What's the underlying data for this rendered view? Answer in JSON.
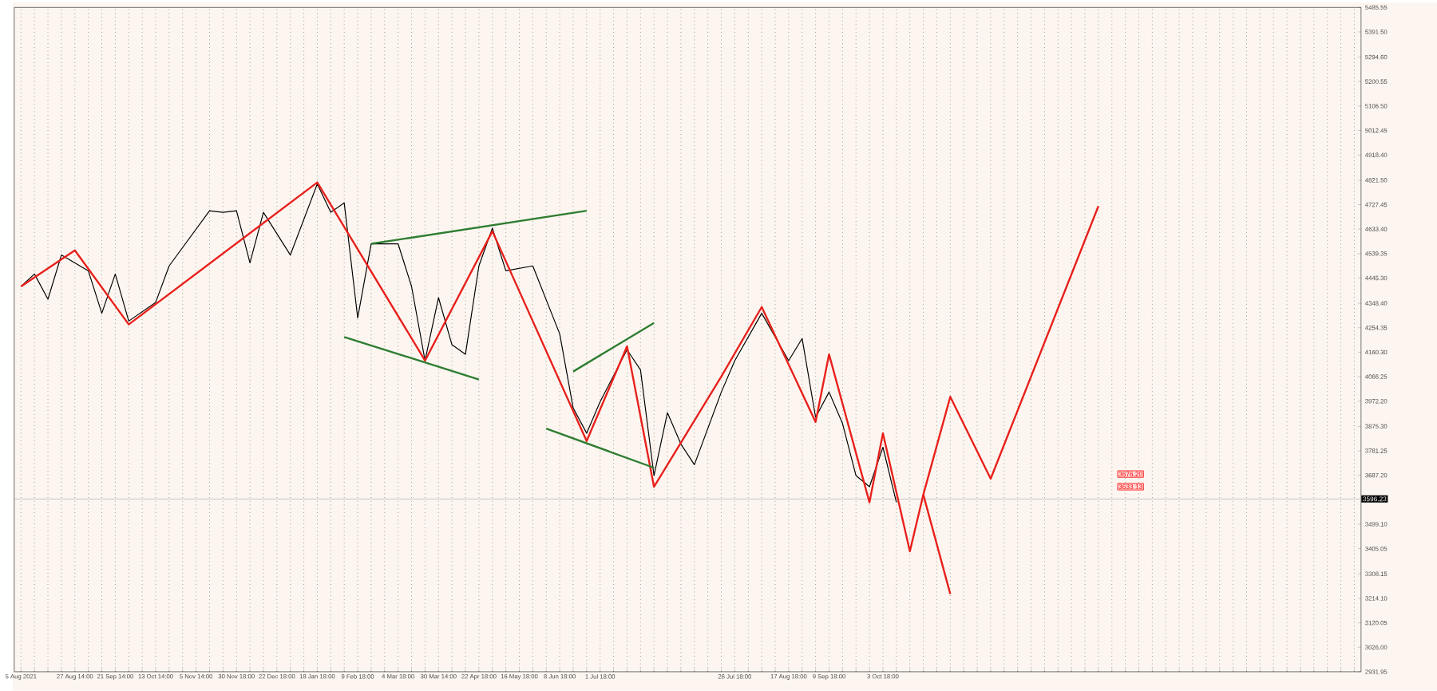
{
  "chart_data": {
    "type": "line",
    "categories": [
      "5 Aug 2021",
      null,
      null,
      null,
      "27 Aug 14:00",
      null,
      null,
      "21 Sep 14:00",
      null,
      null,
      "13 Oct 14:00",
      null,
      null,
      "5 Nov 14:00",
      null,
      null,
      "30 Nov 18:00",
      null,
      null,
      "22 Dec 18:00",
      null,
      null,
      "18 Jan 18:00",
      null,
      null,
      "9 Feb 18:00",
      null,
      null,
      "4 Mar 18:00",
      null,
      null,
      "30 Mar 14:00",
      null,
      null,
      "22 Apr 18:00",
      null,
      null,
      "16 May 18:00",
      null,
      null,
      "8 Jun 18:00",
      null,
      null,
      "1 Jul 18:00",
      null,
      null,
      null,
      null,
      null,
      null,
      null,
      null,
      null,
      "26 Jul 18:00",
      null,
      null,
      null,
      "17 Aug 18:00",
      null,
      null,
      "9 Sep 18:00",
      null,
      null,
      null,
      "3 Oct 18:00",
      null,
      null,
      null,
      null,
      null,
      null,
      null,
      null,
      null,
      null,
      null,
      null,
      null,
      null,
      null,
      null,
      null,
      null,
      null,
      null,
      null,
      null,
      null,
      null,
      null,
      null,
      null,
      null,
      null,
      null,
      null,
      null,
      null,
      null,
      null
    ],
    "ylim": [
      2931.95,
      5485.55
    ],
    "yticks": [
      {
        "value": 2931.95,
        "label": "2931.95"
      },
      {
        "value": 3026.0,
        "label": "3026.00"
      },
      {
        "value": 3120.05,
        "label": "3120.05"
      },
      {
        "value": 3214.1,
        "label": "3214.10"
      },
      {
        "value": 3308.15,
        "label": "3308.15"
      },
      {
        "value": 3405.05,
        "label": "3405.05"
      },
      {
        "value": 3499.1,
        "label": "3499.10"
      },
      {
        "value": 3687.2,
        "label": "3687.20"
      },
      {
        "value": 3781.25,
        "label": "3781.25"
      },
      {
        "value": 3875.3,
        "label": "3875.30"
      },
      {
        "value": 3972.2,
        "label": "3972.20"
      },
      {
        "value": 4066.25,
        "label": "4066.25"
      },
      {
        "value": 4160.3,
        "label": "4160.30"
      },
      {
        "value": 4254.35,
        "label": "4254.35"
      },
      {
        "value": 4348.4,
        "label": "4348.40"
      },
      {
        "value": 4445.3,
        "label": "4445.30"
      },
      {
        "value": 4539.35,
        "label": "4539.35"
      },
      {
        "value": 4633.4,
        "label": "4633.40"
      },
      {
        "value": 4727.45,
        "label": "4727.45"
      },
      {
        "value": 4821.5,
        "label": "4821.50"
      },
      {
        "value": 4918.4,
        "label": "4918.40"
      },
      {
        "value": 5012.45,
        "label": "5012.45"
      },
      {
        "value": 5106.5,
        "label": "5106.50"
      },
      {
        "value": 5200.55,
        "label": "5200.55"
      },
      {
        "value": 5294.6,
        "label": "5294.60"
      },
      {
        "value": 5391.5,
        "label": "5391.50"
      },
      {
        "value": 5485.55,
        "label": "5485.55"
      }
    ],
    "grid": "x",
    "series": [
      {
        "color": "#000000",
        "values": [
          4413,
          4461,
          4364,
          4534,
          null,
          4473,
          4310,
          4461,
          4280,
          null,
          4352,
          4492,
          null,
          null,
          4704,
          4698,
          4704,
          4504,
          4698,
          null,
          4534,
          null,
          4807,
          4698,
          4734,
          4292,
          4577,
          null,
          4577,
          4413,
          4128,
          4370,
          4189,
          4152,
          4492,
          4637,
          4473,
          null,
          4492,
          null,
          4231,
          3946,
          3849,
          3970,
          null,
          4170,
          4092,
          3686,
          3928,
          3807,
          3728,
          null,
          4007,
          4128,
          null,
          4310,
          null,
          4128,
          4213,
          3910,
          4007,
          3886,
          3686,
          3643,
          3795,
          3583,
          null,
          null,
          null,
          null,
          null,
          null,
          null,
          null,
          null,
          null,
          null,
          null,
          null,
          null,
          null,
          null,
          null,
          null,
          null,
          null,
          null,
          null,
          null,
          null,
          null,
          null,
          null,
          null,
          null,
          null,
          null,
          null,
          null,
          null
        ]
      },
      {
        "color": "#e8201c",
        "values": [
          4413,
          null,
          null,
          null,
          4552,
          null,
          null,
          null,
          4267,
          null,
          null,
          null,
          null,
          null,
          null,
          null,
          null,
          null,
          null,
          null,
          null,
          null,
          4813,
          null,
          null,
          null,
          null,
          null,
          null,
          null,
          4128,
          null,
          null,
          null,
          null,
          4625,
          null,
          null,
          null,
          null,
          null,
          null,
          3819,
          null,
          null,
          4183,
          null,
          3643,
          null,
          null,
          null,
          null,
          4067,
          null,
          null,
          4334,
          null,
          null,
          null,
          3892,
          4152,
          null,
          null,
          3583,
          3849,
          null,
          3395,
          3613,
          null,
          3989,
          null,
          null,
          3674,
          null,
          null,
          null,
          null,
          null,
          null,
          null,
          4722,
          null,
          null,
          null,
          null,
          null,
          null,
          null,
          null,
          null,
          null,
          null,
          null,
          null,
          null,
          null,
          null,
          null,
          null,
          null
        ]
      },
      {
        "color": "#e8201c",
        "values": [
          null,
          null,
          null,
          null,
          null,
          null,
          null,
          null,
          null,
          null,
          null,
          null,
          null,
          null,
          null,
          null,
          null,
          null,
          null,
          null,
          null,
          null,
          null,
          null,
          null,
          null,
          null,
          null,
          null,
          null,
          null,
          null,
          null,
          null,
          null,
          null,
          null,
          null,
          null,
          null,
          null,
          null,
          null,
          null,
          null,
          null,
          null,
          null,
          null,
          null,
          null,
          null,
          null,
          null,
          null,
          null,
          null,
          null,
          null,
          null,
          null,
          null,
          null,
          null,
          null,
          null,
          null,
          3613,
          null,
          3231,
          null,
          null,
          null,
          null,
          null,
          null,
          null,
          null,
          null,
          null,
          null,
          null,
          null,
          null,
          null,
          null,
          null,
          null,
          null,
          null,
          null,
          null,
          null,
          null,
          null,
          null,
          null,
          null,
          null,
          null
        ]
      },
      {
        "color": "#2e7d32",
        "values": [
          null,
          null,
          null,
          null,
          null,
          null,
          null,
          null,
          null,
          null,
          null,
          null,
          null,
          null,
          null,
          null,
          null,
          null,
          null,
          null,
          null,
          null,
          null,
          null,
          null,
          null,
          4577,
          null,
          null,
          null,
          null,
          null,
          null,
          null,
          null,
          null,
          null,
          null,
          null,
          null,
          null,
          null,
          4704,
          null,
          null,
          null,
          null,
          null,
          null,
          null,
          null,
          null,
          null,
          null,
          null,
          null,
          null,
          null,
          null,
          null,
          null,
          null,
          null,
          null,
          null,
          null,
          null,
          null,
          null,
          null,
          null,
          null,
          null,
          null,
          null,
          null,
          null,
          null,
          null,
          null,
          null,
          null,
          null,
          null,
          null,
          null,
          null,
          null,
          null,
          null,
          null,
          null,
          null,
          null,
          null,
          null,
          null,
          null,
          null,
          null
        ]
      },
      {
        "color": "#2e7d32",
        "values": [
          null,
          null,
          null,
          null,
          null,
          null,
          null,
          null,
          null,
          null,
          null,
          null,
          null,
          null,
          null,
          null,
          null,
          null,
          null,
          null,
          null,
          null,
          null,
          null,
          4219,
          null,
          null,
          null,
          null,
          null,
          null,
          null,
          null,
          null,
          4055,
          null,
          null,
          null,
          null,
          null,
          null,
          null,
          null,
          null,
          null,
          null,
          null,
          null,
          null,
          null,
          null,
          null,
          null,
          null,
          null,
          null,
          null,
          null,
          null,
          null,
          null,
          null,
          null,
          null,
          null,
          null,
          null,
          null,
          null,
          null,
          null,
          null,
          null,
          null,
          null,
          null,
          null,
          null,
          null,
          null,
          null,
          null,
          null,
          null,
          null,
          null,
          null,
          null,
          null,
          null,
          null,
          null,
          null,
          null,
          null,
          null,
          null,
          null,
          null,
          null
        ]
      },
      {
        "color": "#2e7d32",
        "values": [
          null,
          null,
          null,
          null,
          null,
          null,
          null,
          null,
          null,
          null,
          null,
          null,
          null,
          null,
          null,
          null,
          null,
          null,
          null,
          null,
          null,
          null,
          null,
          null,
          null,
          null,
          null,
          null,
          null,
          null,
          null,
          null,
          null,
          null,
          null,
          null,
          null,
          null,
          null,
          null,
          null,
          4086,
          null,
          null,
          null,
          null,
          null,
          4273,
          null,
          null,
          null,
          null,
          null,
          null,
          null,
          null,
          null,
          null,
          null,
          null,
          null,
          null,
          null,
          null,
          null,
          null,
          null,
          null,
          null,
          null,
          null,
          null,
          null,
          null,
          null,
          null,
          null,
          null,
          null,
          null,
          null,
          null,
          null,
          null,
          null,
          null,
          null,
          null,
          null,
          null,
          null,
          null,
          null,
          null,
          null,
          null,
          null,
          null,
          null,
          null
        ]
      },
      {
        "color": "#2e7d32",
        "values": [
          null,
          null,
          null,
          null,
          null,
          null,
          null,
          null,
          null,
          null,
          null,
          null,
          null,
          null,
          null,
          null,
          null,
          null,
          null,
          null,
          null,
          null,
          null,
          null,
          null,
          null,
          null,
          null,
          null,
          null,
          null,
          null,
          null,
          null,
          null,
          null,
          null,
          null,
          null,
          3867,
          null,
          null,
          null,
          null,
          null,
          null,
          null,
          3716,
          null,
          null,
          null,
          null,
          null,
          null,
          null,
          null,
          null,
          null,
          null,
          null,
          null,
          null,
          null,
          null,
          null,
          null,
          null,
          null,
          null,
          null,
          null,
          null,
          null,
          null,
          null,
          null,
          null,
          null,
          null,
          null,
          null,
          null,
          null,
          null,
          null,
          null,
          null,
          null,
          null,
          null,
          null,
          null,
          null,
          null,
          null,
          null,
          null,
          null,
          null,
          null
        ]
      }
    ],
    "ref_lines": [
      {
        "axis": "y",
        "value": 3596.23,
        "label": "3596.23",
        "color": "#c8c8c8"
      }
    ],
    "annotations": [
      "3676.20",
      "3633.13"
    ]
  }
}
